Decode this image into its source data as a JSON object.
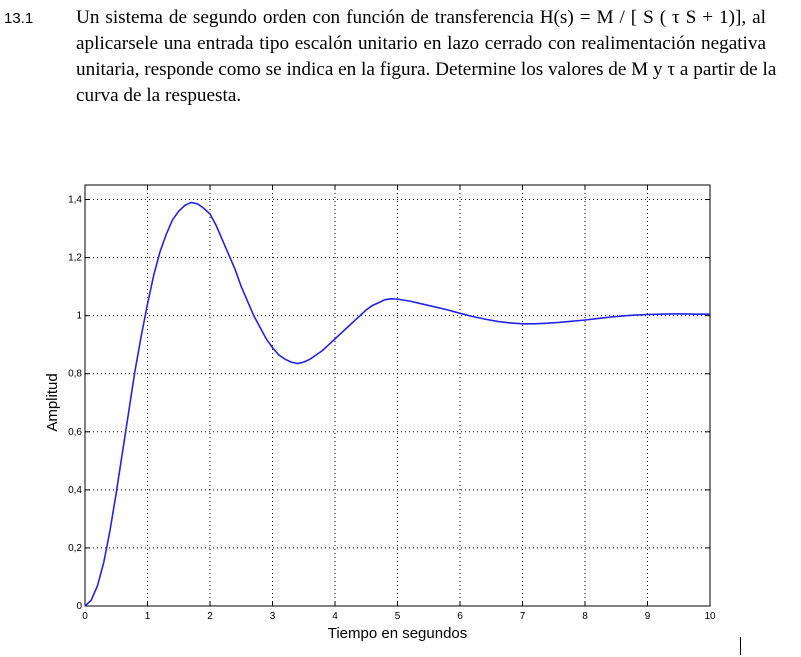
{
  "problem": {
    "number": "13.1",
    "lines": [
      "Un sistema de segundo orden con función de transferencia H(s) = M / [ S ( τ S + 1)], al",
      "aplicarsele una entrada tipo escalón unitario en lazo cerrado con realimentación negativa",
      "unitaria, responde como se indica en la figura. Determine los valores de M y τ a partir de la",
      "curva de la respuesta."
    ]
  },
  "chart_data": {
    "type": "line",
    "xlabel": "Tiempo en segundos",
    "ylabel": "Amplitud",
    "xlim": [
      0,
      10
    ],
    "ylim": [
      0,
      1.45
    ],
    "xticks": [
      0,
      1,
      2,
      3,
      4,
      5,
      6,
      7,
      8,
      9,
      10
    ],
    "xtick_labels": [
      "0",
      "1",
      "2",
      "3",
      "4",
      "5",
      "6",
      "7",
      "8",
      "9",
      "10"
    ],
    "yticks": [
      0,
      0.2,
      0.4,
      0.6,
      0.8,
      1,
      1.2,
      1.4
    ],
    "ytick_labels": [
      "0",
      "0,2",
      "0,4",
      "0,6",
      "0,8",
      "1",
      "1,2",
      "1,4"
    ],
    "grid": true,
    "grid_style": "dotted",
    "line_color": "#2323e6",
    "series": [
      {
        "x": [
          0,
          0.1,
          0.2,
          0.3,
          0.4,
          0.5,
          0.6,
          0.7,
          0.8,
          0.9,
          1.0,
          1.1,
          1.2,
          1.3,
          1.4,
          1.5,
          1.6,
          1.7,
          1.8,
          1.9,
          2.0,
          2.1,
          2.2,
          2.3,
          2.4,
          2.5,
          2.6,
          2.7,
          2.8,
          2.9,
          3.0,
          3.1,
          3.2,
          3.3,
          3.4,
          3.5,
          3.6,
          3.7,
          3.8,
          3.9,
          4.0,
          4.1,
          4.2,
          4.3,
          4.4,
          4.5,
          4.6,
          4.7,
          4.8,
          4.9,
          5.0,
          5.2,
          5.4,
          5.6,
          5.8,
          6.0,
          6.2,
          6.4,
          6.6,
          6.8,
          7.0,
          7.2,
          7.4,
          7.6,
          7.8,
          8.0,
          8.2,
          8.4,
          8.6,
          8.8,
          9.0,
          9.2,
          9.4,
          9.6,
          9.8,
          10.0
        ],
        "y": [
          0,
          0.02,
          0.07,
          0.15,
          0.26,
          0.39,
          0.53,
          0.67,
          0.81,
          0.93,
          1.04,
          1.14,
          1.22,
          1.28,
          1.33,
          1.36,
          1.38,
          1.39,
          1.385,
          1.37,
          1.35,
          1.31,
          1.26,
          1.21,
          1.16,
          1.1,
          1.05,
          1.0,
          0.96,
          0.92,
          0.89,
          0.865,
          0.85,
          0.84,
          0.835,
          0.84,
          0.85,
          0.865,
          0.88,
          0.9,
          0.92,
          0.94,
          0.96,
          0.98,
          1.0,
          1.02,
          1.035,
          1.045,
          1.055,
          1.058,
          1.057,
          1.05,
          1.04,
          1.03,
          1.02,
          1.008,
          0.997,
          0.988,
          0.98,
          0.975,
          0.972,
          0.972,
          0.974,
          0.977,
          0.981,
          0.985,
          0.99,
          0.995,
          0.999,
          1.002,
          1.004,
          1.005,
          1.006,
          1.006,
          1.005,
          1.005
        ]
      }
    ]
  }
}
